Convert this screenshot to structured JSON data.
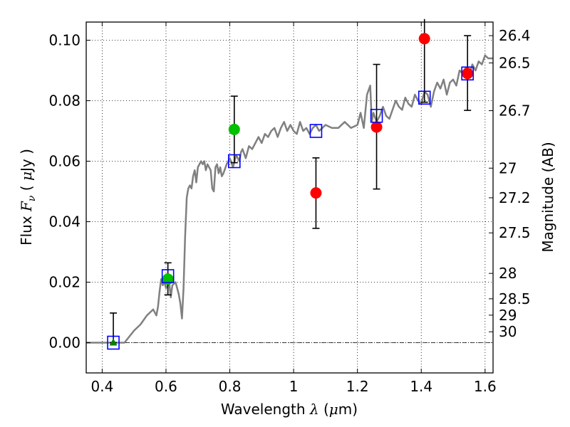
{
  "chart_data": {
    "type": "scatter",
    "xlabel": "Wavelength",
    "xlabel_symbol": "λ",
    "xlabel_unit_open": " (",
    "xlabel_unit_mu": "μ",
    "xlabel_unit_close": "m)",
    "ylabel": "Flux",
    "ylabel_symbol": "F",
    "ylabel_subscript": "ν",
    "ylabel_unit_open": "( ",
    "ylabel_unit_mu": "μ",
    "ylabel_unit_close": "Jy )",
    "y2label": "Magnitude (AB)",
    "xlim": [
      0.35,
      1.625
    ],
    "ylim": [
      -0.01,
      0.106
    ],
    "grid": true,
    "x_ticks": [
      {
        "value": 0.4,
        "label": "0.4"
      },
      {
        "value": 0.6,
        "label": "0.6"
      },
      {
        "value": 0.8,
        "label": "0.8"
      },
      {
        "value": 1.0,
        "label": "1"
      },
      {
        "value": 1.2,
        "label": "1.2"
      },
      {
        "value": 1.4,
        "label": "1.4"
      },
      {
        "value": 1.6,
        "label": "1.6"
      }
    ],
    "y_ticks": [
      {
        "value": 0.0,
        "label": "0.00"
      },
      {
        "value": 0.02,
        "label": "0.02"
      },
      {
        "value": 0.04,
        "label": "0.04"
      },
      {
        "value": 0.06,
        "label": "0.06"
      },
      {
        "value": 0.08,
        "label": "0.08"
      },
      {
        "value": 0.1,
        "label": "0.10"
      }
    ],
    "magnitude_ticks": [
      {
        "flux": 0.1015,
        "label": "26.4"
      },
      {
        "flux": 0.0925,
        "label": "26.5"
      },
      {
        "flux": 0.0767,
        "label": "26.7"
      },
      {
        "flux": 0.0577,
        "label": "27"
      },
      {
        "flux": 0.0479,
        "label": "27.2"
      },
      {
        "flux": 0.0363,
        "label": "27.5"
      },
      {
        "flux": 0.0229,
        "label": "28"
      },
      {
        "flux": 0.0145,
        "label": "28.5"
      },
      {
        "flux": 0.0091,
        "label": "29"
      },
      {
        "flux": 0.0036,
        "label": "30"
      }
    ],
    "model_sed": {
      "name": "model spectrum",
      "color": "#808080",
      "x": [
        0.35,
        0.47,
        0.5,
        0.52,
        0.54,
        0.55,
        0.56,
        0.57,
        0.575,
        0.58,
        0.585,
        0.59,
        0.595,
        0.6,
        0.61,
        0.615,
        0.62,
        0.63,
        0.64,
        0.645,
        0.65,
        0.655,
        0.66,
        0.665,
        0.67,
        0.675,
        0.68,
        0.685,
        0.69,
        0.695,
        0.7,
        0.71,
        0.715,
        0.72,
        0.725,
        0.73,
        0.74,
        0.745,
        0.75,
        0.755,
        0.76,
        0.765,
        0.77,
        0.775,
        0.78,
        0.79,
        0.8,
        0.81,
        0.82,
        0.83,
        0.835,
        0.84,
        0.85,
        0.86,
        0.87,
        0.88,
        0.89,
        0.9,
        0.91,
        0.92,
        0.93,
        0.94,
        0.95,
        0.96,
        0.97,
        0.98,
        0.99,
        1.0,
        1.01,
        1.02,
        1.03,
        1.04,
        1.05,
        1.06,
        1.07,
        1.08,
        1.09,
        1.1,
        1.12,
        1.14,
        1.16,
        1.18,
        1.2,
        1.21,
        1.22,
        1.23,
        1.24,
        1.245,
        1.25,
        1.26,
        1.27,
        1.28,
        1.29,
        1.3,
        1.31,
        1.32,
        1.33,
        1.34,
        1.35,
        1.36,
        1.37,
        1.38,
        1.39,
        1.4,
        1.41,
        1.42,
        1.43,
        1.44,
        1.45,
        1.46,
        1.47,
        1.48,
        1.49,
        1.5,
        1.51,
        1.52,
        1.53,
        1.54,
        1.55,
        1.56,
        1.57,
        1.58,
        1.59,
        1.6,
        1.61,
        1.625
      ],
      "y": [
        0.0,
        0.0,
        0.004,
        0.006,
        0.009,
        0.01,
        0.011,
        0.009,
        0.012,
        0.017,
        0.021,
        0.019,
        0.02,
        0.018,
        0.02,
        0.015,
        0.019,
        0.02,
        0.016,
        0.013,
        0.008,
        0.018,
        0.035,
        0.048,
        0.051,
        0.052,
        0.051,
        0.055,
        0.057,
        0.053,
        0.058,
        0.06,
        0.059,
        0.06,
        0.057,
        0.059,
        0.057,
        0.051,
        0.05,
        0.058,
        0.059,
        0.056,
        0.058,
        0.055,
        0.056,
        0.059,
        0.061,
        0.058,
        0.062,
        0.06,
        0.063,
        0.064,
        0.061,
        0.065,
        0.064,
        0.066,
        0.068,
        0.066,
        0.069,
        0.068,
        0.07,
        0.071,
        0.068,
        0.071,
        0.073,
        0.07,
        0.072,
        0.07,
        0.069,
        0.073,
        0.07,
        0.071,
        0.069,
        0.071,
        0.072,
        0.07,
        0.071,
        0.072,
        0.071,
        0.071,
        0.073,
        0.071,
        0.072,
        0.076,
        0.071,
        0.082,
        0.085,
        0.073,
        0.076,
        0.073,
        0.075,
        0.078,
        0.075,
        0.074,
        0.077,
        0.08,
        0.078,
        0.077,
        0.081,
        0.079,
        0.078,
        0.082,
        0.08,
        0.079,
        0.083,
        0.082,
        0.078,
        0.083,
        0.086,
        0.084,
        0.087,
        0.082,
        0.086,
        0.087,
        0.085,
        0.09,
        0.089,
        0.091,
        0.088,
        0.092,
        0.09,
        0.093,
        0.092,
        0.095,
        0.094,
        0.094
      ]
    },
    "model_bands": {
      "name": "model band fluxes",
      "color": "#0000ff",
      "x": [
        0.435,
        0.606,
        0.814,
        1.07,
        1.26,
        1.41,
        1.545
      ],
      "y": [
        0.0,
        0.022,
        0.06,
        0.07,
        0.075,
        0.081,
        0.089
      ]
    },
    "observed": [
      {
        "x": 0.435,
        "y": 0.0,
        "err_low": 0.0,
        "err_high": 0.0098,
        "color": "#008000",
        "marker": "triangle"
      },
      {
        "x": 0.606,
        "y": 0.021,
        "err_low": 0.0158,
        "err_high": 0.0264,
        "color": "#00c000",
        "marker": "circle"
      },
      {
        "x": 0.814,
        "y": 0.0705,
        "err_low": 0.0595,
        "err_high": 0.0815,
        "color": "#00c000",
        "marker": "circle"
      },
      {
        "x": 1.07,
        "y": 0.0495,
        "err_low": 0.0378,
        "err_high": 0.0611,
        "color": "#ff0000",
        "marker": "circle"
      },
      {
        "x": 1.26,
        "y": 0.0713,
        "err_low": 0.0508,
        "err_high": 0.092,
        "color": "#ff0000",
        "marker": "circle"
      },
      {
        "x": 1.41,
        "y": 0.1005,
        "err_low": 0.0795,
        "err_high": 0.107,
        "color": "#ff0000",
        "marker": "circle"
      },
      {
        "x": 1.545,
        "y": 0.089,
        "err_low": 0.0768,
        "err_high": 0.1015,
        "color": "#ff0000",
        "marker": "circle"
      }
    ]
  }
}
